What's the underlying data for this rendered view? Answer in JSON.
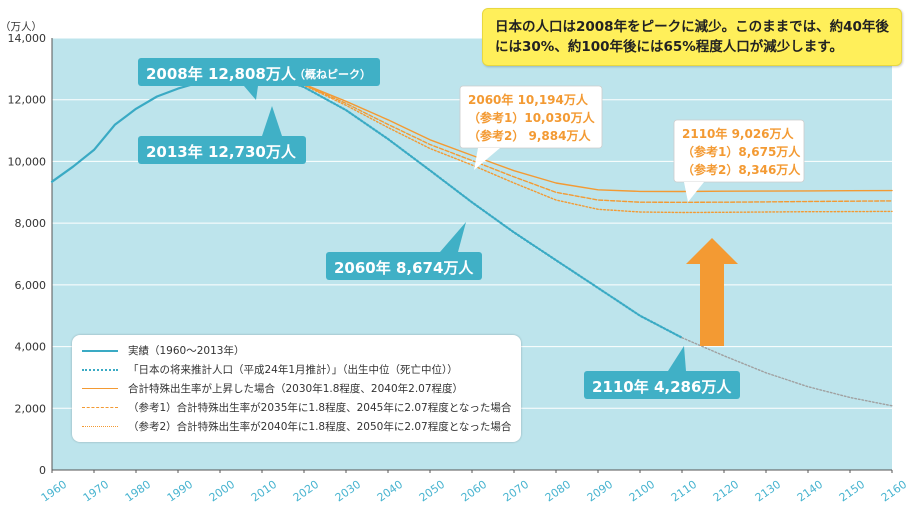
{
  "chart_data": {
    "type": "line",
    "ylabel": "（万人）",
    "xlim": [
      1960,
      2160
    ],
    "ylim": [
      0,
      14000
    ],
    "x_ticks": [
      1960,
      1970,
      1980,
      1990,
      2000,
      2010,
      2020,
      2030,
      2040,
      2050,
      2060,
      2070,
      2080,
      2090,
      2100,
      2110,
      2120,
      2130,
      2140,
      2150,
      2160
    ],
    "y_ticks": [
      0,
      2000,
      4000,
      6000,
      8000,
      10000,
      12000,
      14000
    ],
    "y_tick_labels": [
      "0",
      "2,000",
      "4,000",
      "6,000",
      "8,000",
      "10,000",
      "12,000",
      "14,000"
    ],
    "grid": "horizontal",
    "background": "#bde4ec",
    "series": [
      {
        "name": "実績（1960〜2013年）",
        "color": "#3aaac4",
        "style": "solid",
        "x": [
          1960,
          1965,
          1970,
          1975,
          1980,
          1985,
          1990,
          1995,
          2000,
          2005,
          2008,
          2010,
          2013
        ],
        "values": [
          9342,
          9828,
          10372,
          11194,
          11706,
          12105,
          12361,
          12557,
          12693,
          12777,
          12808,
          12806,
          12730
        ]
      },
      {
        "name": "「日本の将来推計人口（平成24年1月推計）」（出生中位（死亡中位））",
        "color": "#3aaac4",
        "style": "dotted",
        "x": [
          2013,
          2020,
          2030,
          2040,
          2050,
          2060,
          2070,
          2080,
          2090,
          2100,
          2110
        ],
        "values": [
          12730,
          12410,
          11662,
          10728,
          9708,
          8674,
          7700,
          6800,
          5900,
          5000,
          4286
        ]
      },
      {
        "name": "",
        "color": "#a0a0a0",
        "style": "dotted",
        "x": [
          2110,
          2120,
          2130,
          2140,
          2150,
          2160
        ],
        "values": [
          4286,
          3700,
          3150,
          2700,
          2350,
          2080
        ]
      },
      {
        "name": "合計特殊出生率が上昇した場合（2030年1.8程度、2040年2.07程度）",
        "color": "#f39a33",
        "style": "solid",
        "x": [
          2013,
          2020,
          2030,
          2040,
          2050,
          2060,
          2070,
          2080,
          2090,
          2100,
          2110,
          2120,
          2130,
          2140,
          2150,
          2160
        ],
        "values": [
          12730,
          12500,
          11950,
          11350,
          10700,
          10194,
          9700,
          9300,
          9080,
          9030,
          9026,
          9035,
          9040,
          9045,
          9050,
          9055
        ]
      },
      {
        "name": "（参考1）合計特殊出生率が2035年に1.8程度、2045年に2.07程度となった場合",
        "color": "#f39a33",
        "style": "dashed",
        "x": [
          2013,
          2020,
          2030,
          2040,
          2050,
          2060,
          2070,
          2080,
          2090,
          2100,
          2110,
          2120,
          2130,
          2140,
          2150,
          2160
        ],
        "values": [
          12730,
          12480,
          11880,
          11200,
          10550,
          10030,
          9500,
          9000,
          8750,
          8680,
          8675,
          8680,
          8690,
          8700,
          8710,
          8720
        ]
      },
      {
        "name": "（参考2）合計特殊出生率が2040年に1.8程度、2050年に2.07程度となった場合",
        "color": "#f39a33",
        "style": "dotted",
        "x": [
          2013,
          2020,
          2030,
          2040,
          2050,
          2060,
          2070,
          2080,
          2090,
          2100,
          2110,
          2120,
          2130,
          2140,
          2150,
          2160
        ],
        "values": [
          12730,
          12470,
          11820,
          11100,
          10420,
          9884,
          9300,
          8750,
          8450,
          8360,
          8346,
          8350,
          8360,
          8370,
          8375,
          8380
        ]
      }
    ],
    "annotations": [
      {
        "text": "2008年 12,808万人",
        "sub": "（概ねピーク）"
      },
      {
        "text": "2013年 12,730万人"
      },
      {
        "text": "2060年 8,674万人"
      },
      {
        "text": "2110年 4,286万人"
      },
      {
        "lines": [
          "2060年 10,194万人",
          "（参考1）10,030万人",
          "（参考2） 9,884万人"
        ]
      },
      {
        "lines": [
          "2110年 9,026万人",
          "（参考1）8,675万人",
          "（参考2）8,346万人"
        ]
      }
    ]
  },
  "callout": {
    "line1": "日本の人口は2008年をピークに減少。このままでは、約40年後",
    "line2": "には30%、約100年後には65%程度人口が減少します。"
  },
  "legend": {
    "items": [
      {
        "label": "実績（1960〜2013年）",
        "color": "#3aaac4",
        "style": "solid"
      },
      {
        "label": "「日本の将来推計人口（平成24年1月推計）」（出生中位（死亡中位））",
        "color": "#3aaac4",
        "style": "dotted"
      },
      {
        "label": "合計特殊出生率が上昇した場合（2030年1.8程度、2040年2.07程度）",
        "color": "#f39a33",
        "style": "solid"
      },
      {
        "label": "（参考1）合計特殊出生率が2035年に1.8程度、2045年に2.07程度となった場合",
        "color": "#f39a33",
        "style": "dashed"
      },
      {
        "label": "（参考2）合計特殊出生率が2040年に1.8程度、2050年に2.07程度となった場合",
        "color": "#f39a33",
        "style": "dotted"
      }
    ]
  }
}
